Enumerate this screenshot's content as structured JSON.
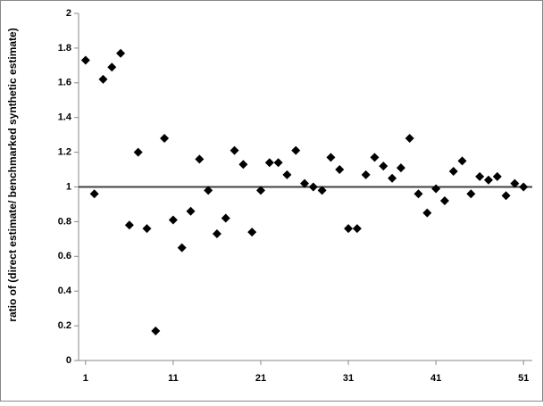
{
  "chart_data": {
    "type": "scatter",
    "y_label": "ratio of (direct estimate/ benchmarked synthetic estimate)",
    "x": [
      1,
      2,
      3,
      4,
      5,
      6,
      7,
      8,
      9,
      10,
      11,
      12,
      13,
      14,
      15,
      16,
      17,
      18,
      19,
      20,
      21,
      22,
      23,
      24,
      25,
      26,
      27,
      28,
      29,
      30,
      31,
      32,
      33,
      34,
      35,
      36,
      37,
      38,
      39,
      40,
      41,
      42,
      43,
      44,
      45,
      46,
      47,
      48,
      49,
      50,
      51
    ],
    "values": [
      1.73,
      0.96,
      1.62,
      1.69,
      1.77,
      0.78,
      1.2,
      0.76,
      0.17,
      1.28,
      0.81,
      0.65,
      0.86,
      1.16,
      0.98,
      0.73,
      0.82,
      1.21,
      1.13,
      0.74,
      0.98,
      1.14,
      1.14,
      1.07,
      1.21,
      1.02,
      1.0,
      0.98,
      1.17,
      1.1,
      0.76,
      0.76,
      1.07,
      1.17,
      1.12,
      1.05,
      1.11,
      1.28,
      0.96,
      0.85,
      0.99,
      0.92,
      1.09,
      1.15,
      0.96,
      1.06,
      1.04,
      1.06,
      0.95,
      1.02,
      1.0
    ],
    "color": "#000000",
    "reference_line": 1,
    "xlim": [
      0.2,
      52
    ],
    "xticks": [
      1,
      11,
      21,
      31,
      41,
      51
    ],
    "ylim": [
      0,
      2
    ],
    "yticks": [
      0,
      0.2,
      0.4,
      0.6,
      0.8,
      1,
      1.2,
      1.4,
      1.6,
      1.8,
      2
    ]
  }
}
